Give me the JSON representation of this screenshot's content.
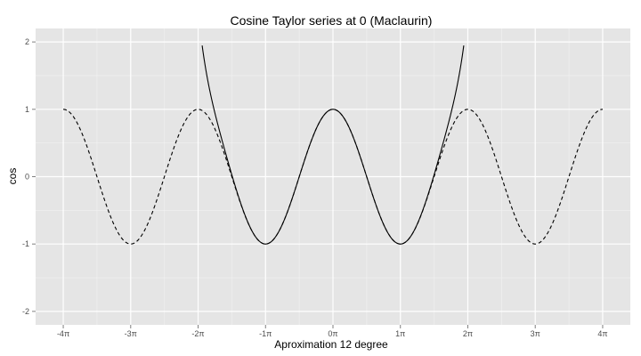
{
  "chart_data": {
    "type": "line",
    "title": "Cosine Taylor series at 0 (Maclaurin)",
    "xlabel": "Aproximation  12 degree",
    "ylabel": "cos",
    "x_unit": "π",
    "xlim": [
      -4,
      4
    ],
    "ylim": [
      -2,
      2
    ],
    "x_ticks": [
      -4,
      -3,
      -2,
      -1,
      0,
      1,
      2,
      3,
      4
    ],
    "x_tick_labels": [
      "-4π",
      "-3π",
      "-2π",
      "-1π",
      "0π",
      "1π",
      "2π",
      "3π",
      "4π"
    ],
    "y_ticks": [
      -2,
      -1,
      0,
      1,
      2
    ],
    "y_tick_labels": [
      "-2",
      "-1",
      "0",
      "1",
      "2"
    ],
    "grid": true,
    "series": [
      {
        "function": "cos(x)",
        "style": "dashed",
        "color": "#000000",
        "x_range": [
          -4,
          4
        ]
      },
      {
        "function": "Taylor polynomial of cos(x) at 0, degree 12",
        "style": "solid",
        "color": "#000000",
        "x_range": [
          -1.94,
          1.94
        ]
      }
    ],
    "colors": {
      "panel_background": "#e5e5e5",
      "grid_major": "#ffffff",
      "grid_minor": "#f2f2f2",
      "tick_text": "#4d4d4d"
    }
  }
}
